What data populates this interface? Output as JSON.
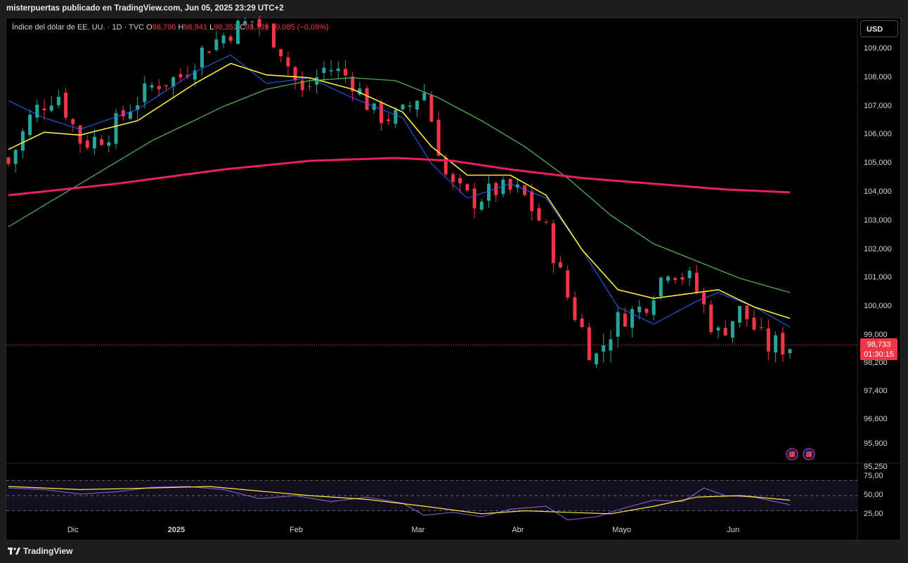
{
  "header": {
    "text": "misterpuertas publicado en TradingView.com, Jun 05, 2025 23:29 UTC+2"
  },
  "legend": {
    "symbol": "Índice del dólar de EE. UU. · 1D · TVC",
    "o_label": "O",
    "o_value": "98,796",
    "h_label": "H",
    "h_value": "98,941",
    "l_label": "L",
    "l_value": "98,351",
    "c_label": "C",
    "c_value": "98,733",
    "change": "−0,085 (−0,09%)"
  },
  "currency_button": "USD",
  "price_tag": {
    "price": "98,733",
    "countdown": "01:30:15"
  },
  "footer": {
    "brand": "TradingView"
  },
  "colors": {
    "up": "#26a69a",
    "down": "#f23645",
    "ma_blue": "#2962ff",
    "ma_yellow": "#ffeb3b",
    "ma_green": "#4caf50",
    "ma_red": "#e91e63",
    "rsi": "#7e57c2"
  },
  "chart_data": [
    {
      "type": "candlestick",
      "symbol": "DXY",
      "interval": "1D",
      "y_axis_ticks": [
        "109,000",
        "108,000",
        "107,000",
        "106,000",
        "105,000",
        "104,000",
        "103,000",
        "102,000",
        "101,000",
        "100,000",
        "99,000",
        "98,200",
        "97,400",
        "96,600",
        "95,900",
        "95,250"
      ],
      "x_axis_ticks": [
        "Dic",
        "2025",
        "Feb",
        "Mar",
        "Abr",
        "Mayo",
        "Jun"
      ],
      "last_price": 98.733,
      "ohlc_last": {
        "open": 98.796,
        "high": 98.941,
        "low": 98.351,
        "close": 98.733
      },
      "close_path": [
        {
          "date": "2024-11-08",
          "close": 105.0
        },
        {
          "date": "2024-11-14",
          "close": 106.8
        },
        {
          "date": "2024-11-22",
          "close": 107.5
        },
        {
          "date": "2024-11-29",
          "close": 105.7
        },
        {
          "date": "2024-12-06",
          "close": 106.0
        },
        {
          "date": "2024-12-13",
          "close": 107.0
        },
        {
          "date": "2024-12-20",
          "close": 107.8
        },
        {
          "date": "2024-12-27",
          "close": 108.0
        },
        {
          "date": "2025-01-03",
          "close": 109.0
        },
        {
          "date": "2025-01-10",
          "close": 109.6
        },
        {
          "date": "2025-01-13",
          "close": 110.0
        },
        {
          "date": "2025-01-17",
          "close": 109.3
        },
        {
          "date": "2025-01-24",
          "close": 107.4
        },
        {
          "date": "2025-01-31",
          "close": 108.4
        },
        {
          "date": "2025-02-07",
          "close": 108.0
        },
        {
          "date": "2025-02-14",
          "close": 106.7
        },
        {
          "date": "2025-02-21",
          "close": 106.6
        },
        {
          "date": "2025-02-28",
          "close": 107.6
        },
        {
          "date": "2025-03-05",
          "close": 104.3
        },
        {
          "date": "2025-03-14",
          "close": 103.7
        },
        {
          "date": "2025-03-21",
          "close": 104.1
        },
        {
          "date": "2025-03-28",
          "close": 104.0
        },
        {
          "date": "2025-04-04",
          "close": 102.7
        },
        {
          "date": "2025-04-11",
          "close": 100.1
        },
        {
          "date": "2025-04-21",
          "close": 98.3
        },
        {
          "date": "2025-04-25",
          "close": 99.6
        },
        {
          "date": "2025-05-02",
          "close": 100.0
        },
        {
          "date": "2025-05-12",
          "close": 101.4
        },
        {
          "date": "2025-05-16",
          "close": 100.9
        },
        {
          "date": "2025-05-23",
          "close": 99.0
        },
        {
          "date": "2025-05-28",
          "close": 99.9
        },
        {
          "date": "2025-06-02",
          "close": 98.7
        },
        {
          "date": "2025-06-05",
          "close": 98.733
        }
      ],
      "moving_averages": [
        {
          "color": "blue",
          "points": [
            [
              0,
              107.2
            ],
            [
              5,
              106.6
            ],
            [
              10,
              106.2
            ],
            [
              18,
              106.9
            ],
            [
              26,
              108.2
            ],
            [
              31,
              108.8
            ],
            [
              36,
              107.8
            ],
            [
              42,
              108.0
            ],
            [
              48,
              107.3
            ],
            [
              55,
              106.6
            ],
            [
              59,
              105.0
            ],
            [
              64,
              103.8
            ],
            [
              70,
              104.3
            ],
            [
              75,
              103.8
            ],
            [
              80,
              102.0
            ],
            [
              85,
              100.0
            ],
            [
              90,
              99.4
            ],
            [
              96,
              100.2
            ],
            [
              99,
              100.5
            ],
            [
              104,
              100.0
            ],
            [
              109,
              99.3
            ]
          ]
        },
        {
          "color": "yellow",
          "points": [
            [
              0,
              105.5
            ],
            [
              5,
              106.1
            ],
            [
              10,
              106.0
            ],
            [
              18,
              106.5
            ],
            [
              26,
              107.8
            ],
            [
              31,
              108.5
            ],
            [
              36,
              108.1
            ],
            [
              42,
              108.0
            ],
            [
              48,
              107.6
            ],
            [
              55,
              106.8
            ],
            [
              59,
              105.6
            ],
            [
              64,
              104.6
            ],
            [
              70,
              104.6
            ],
            [
              75,
              103.9
            ],
            [
              80,
              102.0
            ],
            [
              85,
              100.6
            ],
            [
              90,
              100.3
            ],
            [
              96,
              100.5
            ],
            [
              99,
              100.6
            ],
            [
              104,
              100.0
            ],
            [
              109,
              99.6
            ]
          ]
        },
        {
          "color": "green",
          "points": [
            [
              0,
              102.8
            ],
            [
              10,
              104.3
            ],
            [
              20,
              105.8
            ],
            [
              30,
              107.0
            ],
            [
              36,
              107.6
            ],
            [
              42,
              107.9
            ],
            [
              48,
              108.0
            ],
            [
              54,
              107.9
            ],
            [
              60,
              107.3
            ],
            [
              66,
              106.5
            ],
            [
              72,
              105.6
            ],
            [
              78,
              104.5
            ],
            [
              84,
              103.2
            ],
            [
              90,
              102.2
            ],
            [
              96,
              101.6
            ],
            [
              102,
              101.0
            ],
            [
              109,
              100.5
            ]
          ]
        },
        {
          "color": "red",
          "points": [
            [
              0,
              103.9
            ],
            [
              15,
              104.3
            ],
            [
              30,
              104.8
            ],
            [
              42,
              105.1
            ],
            [
              54,
              105.2
            ],
            [
              62,
              105.1
            ],
            [
              70,
              104.8
            ],
            [
              80,
              104.5
            ],
            [
              90,
              104.3
            ],
            [
              100,
              104.1
            ],
            [
              109,
              104.0
            ]
          ]
        }
      ]
    },
    {
      "type": "line",
      "name": "RSI",
      "y_axis_ticks": [
        "75,00",
        "50,00",
        "25,00"
      ],
      "levels": [
        70,
        50,
        30
      ],
      "rsi": [
        [
          0,
          60
        ],
        [
          5,
          58
        ],
        [
          10,
          52
        ],
        [
          15,
          55
        ],
        [
          20,
          61
        ],
        [
          25,
          62
        ],
        [
          30,
          58
        ],
        [
          35,
          46
        ],
        [
          40,
          50
        ],
        [
          45,
          42
        ],
        [
          50,
          48
        ],
        [
          55,
          40
        ],
        [
          58,
          24
        ],
        [
          62,
          28
        ],
        [
          66,
          22
        ],
        [
          70,
          32
        ],
        [
          75,
          36
        ],
        [
          78,
          18
        ],
        [
          82,
          22
        ],
        [
          86,
          34
        ],
        [
          90,
          44
        ],
        [
          94,
          42
        ],
        [
          97,
          60
        ],
        [
          100,
          50
        ],
        [
          104,
          48
        ],
        [
          109,
          38
        ]
      ],
      "rsi_ma": [
        [
          0,
          62
        ],
        [
          10,
          58
        ],
        [
          20,
          60
        ],
        [
          28,
          62
        ],
        [
          35,
          56
        ],
        [
          42,
          50
        ],
        [
          50,
          45
        ],
        [
          58,
          36
        ],
        [
          66,
          26
        ],
        [
          72,
          30
        ],
        [
          78,
          28
        ],
        [
          84,
          26
        ],
        [
          90,
          36
        ],
        [
          96,
          48
        ],
        [
          102,
          50
        ],
        [
          109,
          44
        ]
      ]
    }
  ]
}
